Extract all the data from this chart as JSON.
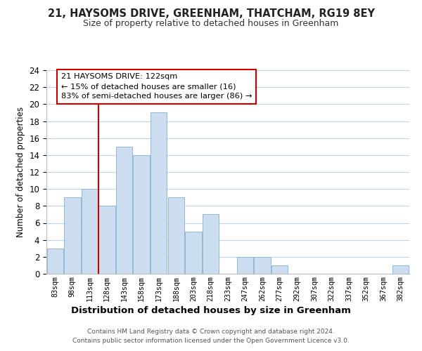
{
  "title_line1": "21, HAYSOMS DRIVE, GREENHAM, THATCHAM, RG19 8EY",
  "title_line2": "Size of property relative to detached houses in Greenham",
  "xlabel": "Distribution of detached houses by size in Greenham",
  "ylabel": "Number of detached properties",
  "bar_labels": [
    "83sqm",
    "98sqm",
    "113sqm",
    "128sqm",
    "143sqm",
    "158sqm",
    "173sqm",
    "188sqm",
    "203sqm",
    "218sqm",
    "233sqm",
    "247sqm",
    "262sqm",
    "277sqm",
    "292sqm",
    "307sqm",
    "322sqm",
    "337sqm",
    "352sqm",
    "367sqm",
    "382sqm"
  ],
  "bar_values": [
    3,
    9,
    10,
    8,
    15,
    14,
    19,
    9,
    5,
    7,
    0,
    2,
    2,
    1,
    0,
    0,
    0,
    0,
    0,
    0,
    1
  ],
  "bar_color": "#ccddf0",
  "bar_edge_color": "#90b8d8",
  "ylim": [
    0,
    24
  ],
  "yticks": [
    0,
    2,
    4,
    6,
    8,
    10,
    12,
    14,
    16,
    18,
    20,
    22,
    24
  ],
  "annotation_title": "21 HAYSOMS DRIVE: 122sqm",
  "annotation_line1": "← 15% of detached houses are smaller (16)",
  "annotation_line2": "83% of semi-detached houses are larger (86) →",
  "annotation_box_color": "#ffffff",
  "annotation_box_edge": "#cc0000",
  "vline_color": "#cc0000",
  "vline_x_index": 2.5,
  "footer1": "Contains HM Land Registry data © Crown copyright and database right 2024.",
  "footer2": "Contains public sector information licensed under the Open Government Licence v3.0.",
  "background_color": "#ffffff",
  "grid_color": "#c0d4e8"
}
